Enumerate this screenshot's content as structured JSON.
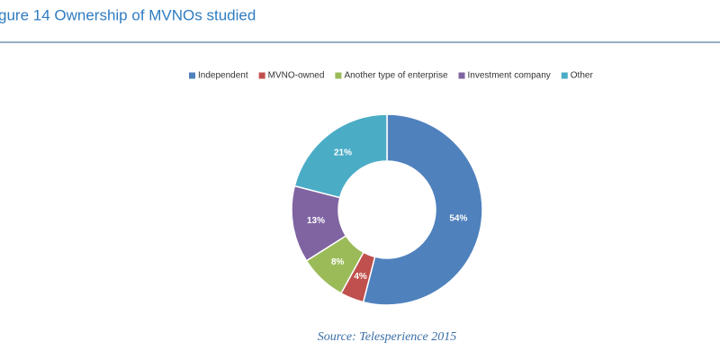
{
  "chart_data": {
    "type": "donut",
    "title": "gure 14 Ownership of MVNOs studied",
    "source": "Source: Telesperience 2015",
    "categories": [
      "Independent",
      "MVNO-owned",
      "Another type of enterprise",
      "Investment company",
      "Other"
    ],
    "values": [
      54,
      4,
      8,
      13,
      21
    ],
    "value_labels": [
      "54%",
      "4%",
      "8%",
      "13%",
      "21%"
    ],
    "colors": [
      "#4f81bd",
      "#c0504d",
      "#9bbb59",
      "#8064a2",
      "#4bacc6"
    ],
    "legend": "top"
  }
}
